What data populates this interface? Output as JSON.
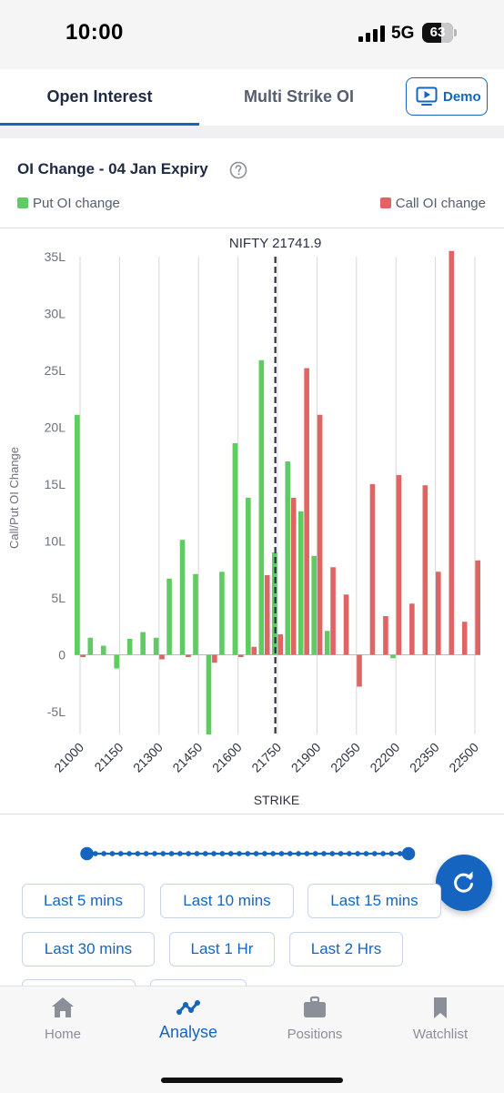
{
  "status_bar": {
    "time": "10:00",
    "network": "5G",
    "battery": "63",
    "battery_fraction": 0.63
  },
  "tabs": [
    {
      "label": "Open Interest",
      "active": true
    },
    {
      "label": "Multi Strike OI",
      "active": false
    }
  ],
  "demo_button": {
    "label": "Demo",
    "icon": "play-screen-icon"
  },
  "chart_card": {
    "title": "OI Change - 04 Jan Expiry",
    "help_icon": "question-circle-icon",
    "legend": {
      "put": "Put OI change",
      "call": "Call OI change"
    }
  },
  "chart_data": {
    "type": "bar",
    "annotation": "NIFTY 21741.9",
    "spot": 21741.9,
    "xlabel": "STRIKE",
    "ylabel": "Call/Put OI Change",
    "ylim": [
      -7,
      35
    ],
    "yticks": [
      -5,
      0,
      5,
      10,
      15,
      20,
      25,
      30,
      35
    ],
    "ytick_labels": [
      "-5L",
      "0",
      "5L",
      "10L",
      "15L",
      "20L",
      "25L",
      "30L",
      "35L"
    ],
    "xtick_labels": [
      "21000",
      "21150",
      "21300",
      "21450",
      "21600",
      "21750",
      "21900",
      "22050",
      "22200",
      "22350",
      "22500"
    ],
    "grid": "vertical",
    "legend_position": "top",
    "categories": [
      21000,
      21050,
      21100,
      21150,
      21200,
      21250,
      21300,
      21350,
      21400,
      21450,
      21500,
      21550,
      21600,
      21650,
      21700,
      21750,
      21800,
      21850,
      21900,
      21950,
      22000,
      22050,
      22100,
      22150,
      22200,
      22250,
      22300,
      22350,
      22400,
      22450,
      22500
    ],
    "series": [
      {
        "name": "Put OI change",
        "color": "#5fcb62",
        "values": [
          21.1,
          1.5,
          0.8,
          -1.2,
          1.4,
          2.0,
          1.5,
          6.7,
          10.1,
          7.1,
          -7.0,
          7.3,
          18.6,
          13.8,
          25.9,
          9.0,
          17.0,
          12.6,
          8.7,
          2.1,
          0.0,
          0.0,
          0.0,
          0.0,
          -0.3,
          0.0,
          0.0,
          0.0,
          0.0,
          0.0,
          0.0
        ]
      },
      {
        "name": "Call OI change",
        "color": "#e06464",
        "values": [
          -0.2,
          0.0,
          0.0,
          0.0,
          0.0,
          0.0,
          -0.4,
          0.0,
          -0.2,
          0.0,
          -0.7,
          0.0,
          -0.2,
          0.7,
          7.0,
          1.8,
          13.8,
          25.2,
          21.1,
          7.7,
          5.3,
          -2.8,
          15.0,
          3.4,
          15.8,
          4.5,
          14.9,
          7.3,
          35.5,
          2.9,
          8.3
        ]
      }
    ]
  },
  "slider": {
    "stops": 39,
    "position": 1.0
  },
  "refresh_button": {
    "icon": "refresh-icon"
  },
  "time_filters": [
    "Last 5 mins",
    "Last 10 mins",
    "Last 15 mins",
    "Last 30 mins",
    "Last 1 Hr",
    "Last 2 Hrs"
  ],
  "bottom_nav": [
    {
      "label": "Home",
      "icon": "home-icon",
      "active": false
    },
    {
      "label": "Analyse",
      "icon": "analyse-chart-icon",
      "active": true
    },
    {
      "label": "Positions",
      "icon": "briefcase-icon",
      "active": false
    },
    {
      "label": "Watchlist",
      "icon": "bookmark-icon",
      "active": false
    }
  ],
  "colors": {
    "accent": "#1565c0",
    "put": "#5fcb62",
    "call": "#e06464",
    "spot_line": "#2b3140"
  }
}
